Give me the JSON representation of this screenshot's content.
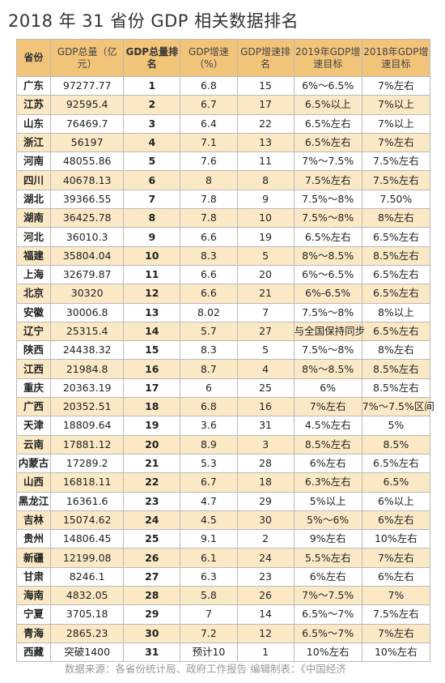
{
  "title": "2018 年 31 省份 GDP 相关数据排名",
  "headers": [
    "省份",
    "GDP总量（亿元）",
    "GDP总量排名",
    "GDP增速（%）",
    "GDP增速排名",
    "2019年GDP增速目标",
    "2018年GDP增速目标"
  ],
  "rows": [
    [
      "广东",
      "97277.77",
      "1",
      "6.8",
      "15",
      "6%～6.5%",
      "7%左右"
    ],
    [
      "江苏",
      "92595.4",
      "2",
      "6.7",
      "17",
      "6.5%以上",
      "7%以上"
    ],
    [
      "山东",
      "76469.7",
      "3",
      "6.4",
      "22",
      "6.5%左右",
      "7%以上"
    ],
    [
      "浙江",
      "56197",
      "4",
      "7.1",
      "13",
      "6.5%左右",
      "7%左右"
    ],
    [
      "河南",
      "48055.86",
      "5",
      "7.6",
      "11",
      "7%～7.5%",
      "7.5%左右"
    ],
    [
      "四川",
      "40678.13",
      "6",
      "8",
      "8",
      "7.5%左右",
      "7.5%左右"
    ],
    [
      "湖北",
      "39366.55",
      "7",
      "7.8",
      "9",
      "7.5%～8%",
      "7.50%"
    ],
    [
      "湖南",
      "36425.78",
      "8",
      "7.8",
      "10",
      "7.5%～8%",
      "8%左右"
    ],
    [
      "河北",
      "36010.3",
      "9",
      "6.6",
      "19",
      "6.5%左右",
      "6.5%左右"
    ],
    [
      "福建",
      "35804.04",
      "10",
      "8.3",
      "5",
      "8%～8.5%",
      "8.5%左右"
    ],
    [
      "上海",
      "32679.87",
      "11",
      "6.6",
      "20",
      "6%～6.5%",
      "6.5%左右"
    ],
    [
      "北京",
      "30320",
      "12",
      "6.6",
      "21",
      "6%-6.5%",
      "6.5%左右"
    ],
    [
      "安徽",
      "30006.8",
      "13",
      "8.02",
      "7",
      "7.5%～8%",
      "8%以上"
    ],
    [
      "辽宁",
      "25315.4",
      "14",
      "5.7",
      "27",
      "与全国保持同步",
      "6.5%左右"
    ],
    [
      "陕西",
      "24438.32",
      "15",
      "8.3",
      "5",
      "7.5%～8%",
      "8%左右"
    ],
    [
      "江西",
      "21984.8",
      "16",
      "8.7",
      "4",
      "8%～8.5%",
      "8.5%左右"
    ],
    [
      "重庆",
      "20363.19",
      "17",
      "6",
      "25",
      "6%",
      "8.5%左右"
    ],
    [
      "广西",
      "20352.51",
      "18",
      "6.8",
      "16",
      "7%左右",
      "7%～7.5%区间"
    ],
    [
      "天津",
      "18809.64",
      "19",
      "3.6",
      "31",
      "4.5%左右",
      "5%"
    ],
    [
      "云南",
      "17881.12",
      "20",
      "8.9",
      "3",
      "8.5%左右",
      "8.5%"
    ],
    [
      "内蒙古",
      "17289.2",
      "21",
      "5.3",
      "28",
      "6%左右",
      "6.5%左右"
    ],
    [
      "山西",
      "16818.11",
      "22",
      "6.7",
      "18",
      "6.3%左右",
      "6.5%"
    ],
    [
      "黑龙江",
      "16361.6",
      "23",
      "4.7",
      "29",
      "5%以上",
      "6%以上"
    ],
    [
      "吉林",
      "15074.62",
      "24",
      "4.5",
      "30",
      "5%～6%",
      "6%左右"
    ],
    [
      "贵州",
      "14806.45",
      "25",
      "9.1",
      "2",
      "9%左右",
      "10%左右"
    ],
    [
      "新疆",
      "12199.08",
      "26",
      "6.1",
      "24",
      "5.5%左右",
      "7%左右"
    ],
    [
      "甘肃",
      "8246.1",
      "27",
      "6.3",
      "23",
      "6%左右",
      "6%左右"
    ],
    [
      "海南",
      "4832.05",
      "28",
      "5.8",
      "26",
      "7%～7.5%",
      "7%"
    ],
    [
      "宁夏",
      "3705.18",
      "29",
      "7",
      "14",
      "6.5%～7%",
      "7.5%左右"
    ],
    [
      "青海",
      "2865.23",
      "30",
      "7.2",
      "12",
      "6.5%～7%",
      "7%左右"
    ],
    [
      "西藏",
      "突破1400",
      "31",
      "预计10",
      "1",
      "10%左右",
      "10%左右"
    ]
  ],
  "footer": "数据来源：各省份统计局、政府工作报告  编辑制表：《中国经济",
  "colors": {
    "header_bg": "#f2c47a",
    "alt_row_bg": "#fbe9c6"
  }
}
